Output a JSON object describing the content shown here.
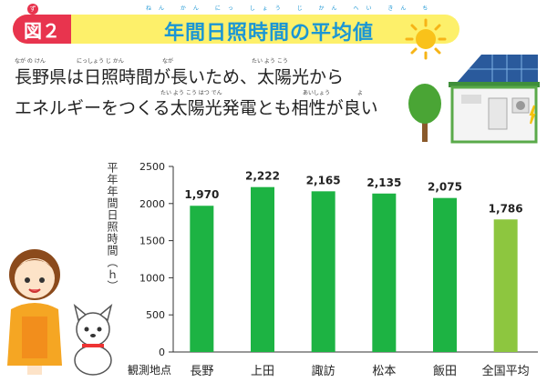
{
  "header": {
    "badge": "図２",
    "badge_ruby": "ず",
    "title": "年間日照時間の平均値",
    "title_ruby": "ねん かん にっ しょう じ かん へい きん ち"
  },
  "subtitle": {
    "line1": "長野県は日照時間が長いため、太陽光から",
    "line2": "エネルギーをつくる太陽光発電とも相性が良い",
    "ruby1a": "なが の けん",
    "ruby1b": "にっしょう じ かん",
    "ruby1c": "なが",
    "ruby1d": "たい よう こう",
    "ruby2a": "たい よう こう はつ でん",
    "ruby2b": "あいしょう",
    "ruby2c": "よ"
  },
  "chart_data": {
    "type": "bar",
    "ylabel": "平年年間日照時間（ｈ）",
    "xcaption": "観測地点",
    "ylim": [
      0,
      2500
    ],
    "yticks": [
      "0",
      "500",
      "1000",
      "1500",
      "2000",
      "2500"
    ],
    "categories": [
      "長野",
      "上田",
      "諏訪",
      "松本",
      "飯田",
      "全国平均"
    ],
    "values": [
      1970,
      2222,
      2165,
      2135,
      2075,
      1786
    ],
    "value_labels": [
      "1,970",
      "2,222",
      "2,165",
      "2,135",
      "2,075",
      "1,786"
    ],
    "colors": [
      "#1db343",
      "#1db343",
      "#1db343",
      "#1db343",
      "#1db343",
      "#8dc63f"
    ]
  },
  "decor": {
    "sun": "sun-icon",
    "house": "solar-house-icon",
    "tree": "tree-icon",
    "girl": "girl-character",
    "dog": "dog-character"
  }
}
